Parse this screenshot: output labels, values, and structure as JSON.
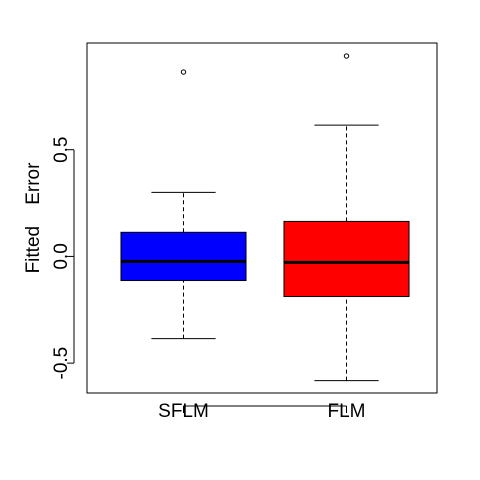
{
  "chart_data": {
    "type": "boxplot",
    "y_label": "Fitted    Error",
    "categories": [
      "SFLM",
      "FLM"
    ],
    "boxes": [
      {
        "min": -0.385,
        "q1": -0.113,
        "median": -0.023,
        "q3": 0.113,
        "max": 0.3,
        "outliers": [
          0.864
        ],
        "color": "#0000ff"
      },
      {
        "min": -0.582,
        "q1": -0.188,
        "median": -0.028,
        "q3": 0.164,
        "max": 0.615,
        "outliers": [
          0.939
        ],
        "color": "#ff0000"
      }
    ],
    "ylim": [
      -0.64,
      1.0
    ],
    "yticks": [
      -0.5,
      {
        "value": 0,
        "label": "0.0"
      },
      0.5
    ]
  }
}
